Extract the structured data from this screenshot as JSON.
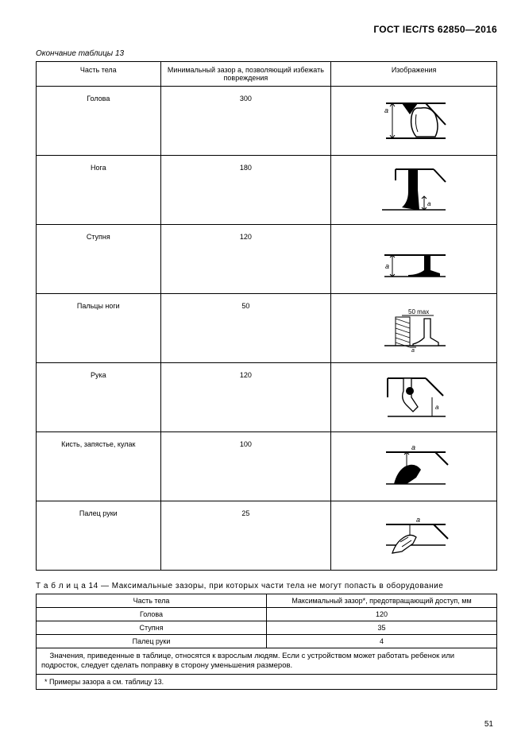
{
  "header": {
    "title": "ГОСТ IEC/TS 62850—2016"
  },
  "table13": {
    "caption": "Окончание таблицы 13",
    "columns": {
      "c1": "Часть тела",
      "c2": "Минимальный зазор a, позволяющий избежать повреждения",
      "c3": "Изображения"
    },
    "widths": {
      "c1": "27%",
      "c2": "37%",
      "c3": "36%"
    },
    "rows": [
      {
        "part": "Голова",
        "value": "300",
        "dia": "head"
      },
      {
        "part": "Нога",
        "value": "180",
        "dia": "leg"
      },
      {
        "part": "Ступня",
        "value": "120",
        "dia": "foot"
      },
      {
        "part": "Пальцы ноги",
        "value": "50",
        "dia": "toes"
      },
      {
        "part": "Рука",
        "value": "120",
        "dia": "arm"
      },
      {
        "part": "Кисть, запястье, кулак",
        "value": "100",
        "dia": "wrist"
      },
      {
        "part": "Палец руки",
        "value": "25",
        "dia": "finger"
      }
    ]
  },
  "table14": {
    "caption_prefix": "Т а б л и ц а   14 —",
    "caption_text": " Максимальные зазоры, при которых части тела не могут попасть в оборудование",
    "columns": {
      "c1": "Часть тела",
      "c2": "Максимальный зазор*, предотвращающий доступ, мм"
    },
    "rows": [
      {
        "part": "Голова",
        "value": "120"
      },
      {
        "part": "Ступня",
        "value": "35"
      },
      {
        "part": "Палец руки",
        "value": "4"
      }
    ],
    "note": "Значения, приведенные в таблице, относятся к взрослым людям. Если с устройством может работать ребенок или подросток, следует сделать поправку в сторону уменьшения размеров.",
    "footnote": "* Примеры зазора a см. таблицу 13."
  },
  "pagenum": "51"
}
